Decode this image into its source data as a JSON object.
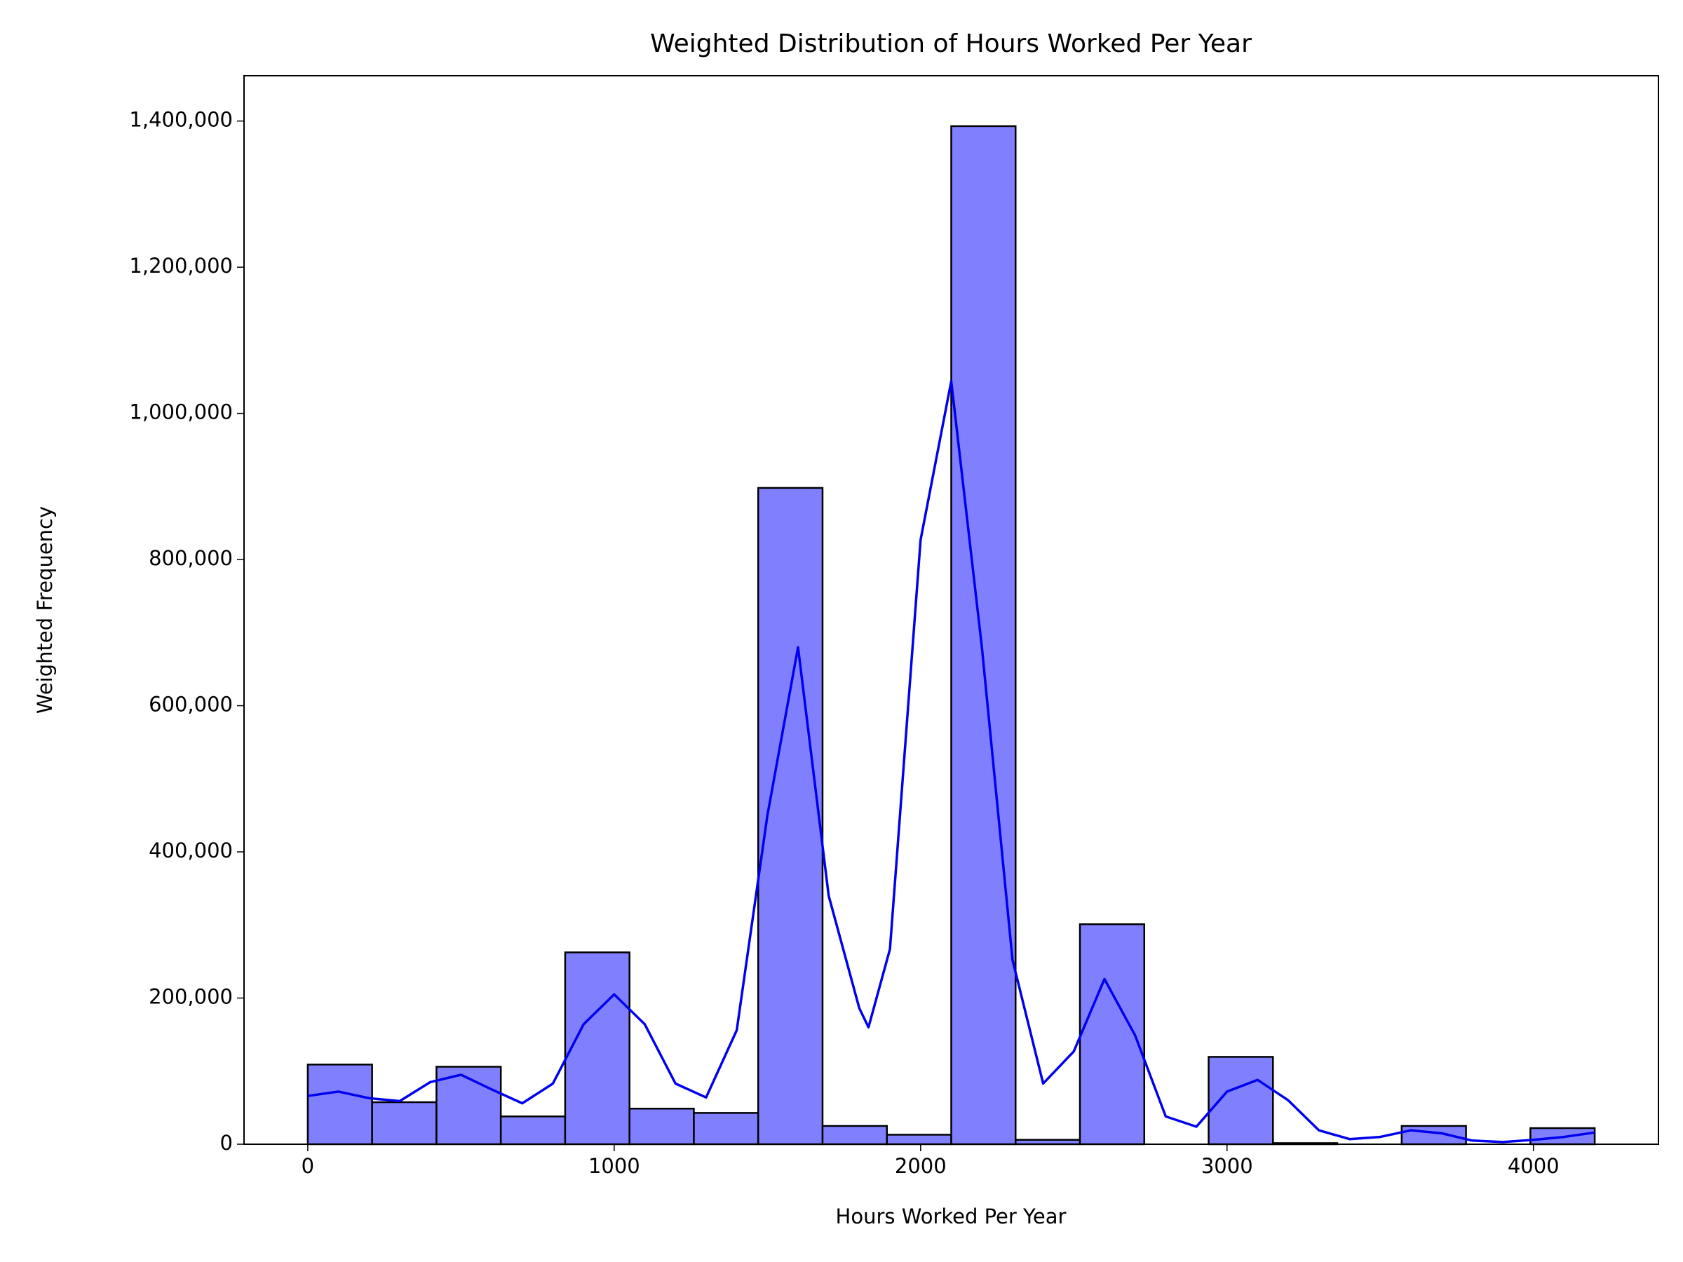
{
  "chart_data": {
    "type": "histogram",
    "title": "Weighted Distribution of Hours Worked Per Year",
    "x_label": "Hours Worked Per Year",
    "y_label": "Weighted Frequency",
    "bins": [
      0,
      210,
      420,
      630,
      840,
      1050,
      1260,
      1470,
      1680,
      1890,
      2100,
      2310,
      2520,
      2730,
      2940,
      3150,
      3360,
      3570,
      3780,
      3990,
      4200
    ],
    "values": [
      109000,
      57500,
      106000,
      38000,
      262500,
      48700,
      42800,
      898000,
      25000,
      13000,
      1393000,
      6000,
      301000,
      0,
      119500,
      1500,
      0,
      25000,
      0,
      22000
    ],
    "color": "#8080ff",
    "edgecolor": "#000000",
    "kde": {
      "color": "#0000ee",
      "x": [
        0,
        100,
        200,
        300,
        400,
        500,
        600,
        700,
        800,
        900,
        1000,
        1100,
        1200,
        1300,
        1400,
        1500,
        1600,
        1700,
        1800,
        1830,
        1900,
        2000,
        2100,
        2200,
        2300,
        2400,
        2500,
        2600,
        2700,
        2800,
        2900,
        3000,
        3100,
        3200,
        3300,
        3400,
        3500,
        3600,
        3700,
        3800,
        3900,
        4000,
        4100,
        4200
      ],
      "values": [
        66000,
        72000,
        63000,
        59000,
        85000,
        95000,
        75000,
        56000,
        83000,
        164000,
        205000,
        164000,
        83000,
        64000,
        156000,
        450000,
        680000,
        340000,
        186000,
        160000,
        267000,
        827000,
        1044000,
        680000,
        252000,
        83000,
        127000,
        226000,
        149000,
        38000,
        24000,
        72000,
        88000,
        60000,
        19000,
        7000,
        10000,
        19000,
        15000,
        5000,
        3000,
        6000,
        10000,
        16000
      ]
    },
    "xlim": [
      -208,
      4408
    ],
    "ylim": [
      0,
      1462000
    ],
    "xticks": [
      0,
      1000,
      2000,
      3000,
      4000
    ],
    "yticks": [
      0,
      {
        "value": 200000,
        "label": "200,000"
      },
      {
        "value": 400000,
        "label": "400,000"
      },
      {
        "value": 600000,
        "label": "600,000"
      },
      {
        "value": 800000,
        "label": "800,000"
      },
      {
        "value": 1000000,
        "label": "1,000,000"
      },
      {
        "value": 1200000,
        "label": "1,200,000"
      },
      {
        "value": 1400000,
        "label": "1,400,000"
      }
    ]
  }
}
